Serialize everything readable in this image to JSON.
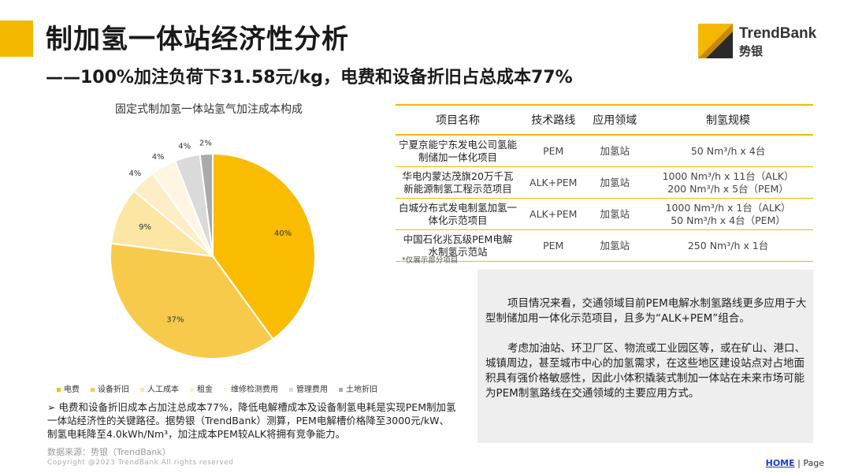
{
  "header": {
    "title": "制加氢一体站经济性分析",
    "subtitle": "——100%加注负荷下31.58元/kg，电费和设备折旧占总成本77%"
  },
  "logo": {
    "name": "TrendBank",
    "sub": "势银"
  },
  "chart_data": {
    "type": "pie",
    "title": "固定式制加氢一体站氢气加注成本构成",
    "categories": [
      "电费",
      "设备折旧",
      "人工成本",
      "租金",
      "维修检测费用",
      "管理费用",
      "土地折旧"
    ],
    "values": [
      40,
      37,
      9,
      4,
      4,
      4,
      2
    ],
    "labels": [
      "40%",
      "37%",
      "9%",
      "4%",
      "4%",
      "4%",
      "2%"
    ],
    "colors": [
      "#f9bc00",
      "#f8ca4c",
      "#fbe6a4",
      "#fdeec8",
      "#fef6e2",
      "#dadada",
      "#aaaaaa"
    ],
    "legend_position": "bottom"
  },
  "bullet": "电费和设备折旧成本占加注总成本77%，降低电解槽成本及设备制氢电耗是实现PEM制加氢一体站经济性的关键路径。据势银（TrendBank）测算，PEM电解槽价格降至3000元/kW、制氢电耗降至4.0kWh/Nm³，加注成本PEM较ALK将拥有竞争能力。",
  "source": "数据来源：势银（TrendBank）",
  "copyright": "Copyright @2023 TrendBank All rights reserved",
  "table": {
    "headers": [
      "项目名称",
      "技术路线",
      "应用领域",
      "制氢规模"
    ],
    "rows": [
      {
        "name": "宁夏京能宁东发电公司氢能制储加一体化项目",
        "tech": "PEM",
        "field": "加氢站",
        "scale": [
          "50 Nm³/h x 4台"
        ]
      },
      {
        "name": "华电内蒙达茂旗20万千瓦新能源制氢工程示范项目",
        "tech": "ALK+PEM",
        "field": "加氢站",
        "scale": [
          "1000 Nm³/h x 11台（ALK）",
          "200 Nm³/h x 5台（PEM）"
        ]
      },
      {
        "name": "白城分布式发电制氢加氢一体化示范项目",
        "tech": "ALK+PEM",
        "field": "加氢站",
        "scale": [
          "1000 Nm³/h x 1台（ALK）",
          "50 Nm³/h x 4台（PEM）"
        ]
      },
      {
        "name": "中国石化兆瓦级PEM电解水制氢示范站",
        "tech": "PEM",
        "field": "加氢站",
        "scale": [
          "250 Nm³/h x 1台"
        ]
      }
    ],
    "note": "*仅展示部分项目"
  },
  "textbox": {
    "p1": "项目情况来看，交通领域目前PEM电解水制氢路线更多应用于大型制储加用一体化示范项目，且多为“ALK+PEM”组合。",
    "p2": "考虑加油站、环卫厂区、物流或工业园区等，或在矿山、港口、城镇周边，甚至城市中心的加氢需求，在这些地区建设站点对占地面积具有强价格敏感性，因此小体积撬装式制加一体站在未来市场可能为PEM制氢路线在交通领域的主要应用方式。"
  },
  "footer": {
    "home": "HOME",
    "sep": "|",
    "page": "Page"
  }
}
